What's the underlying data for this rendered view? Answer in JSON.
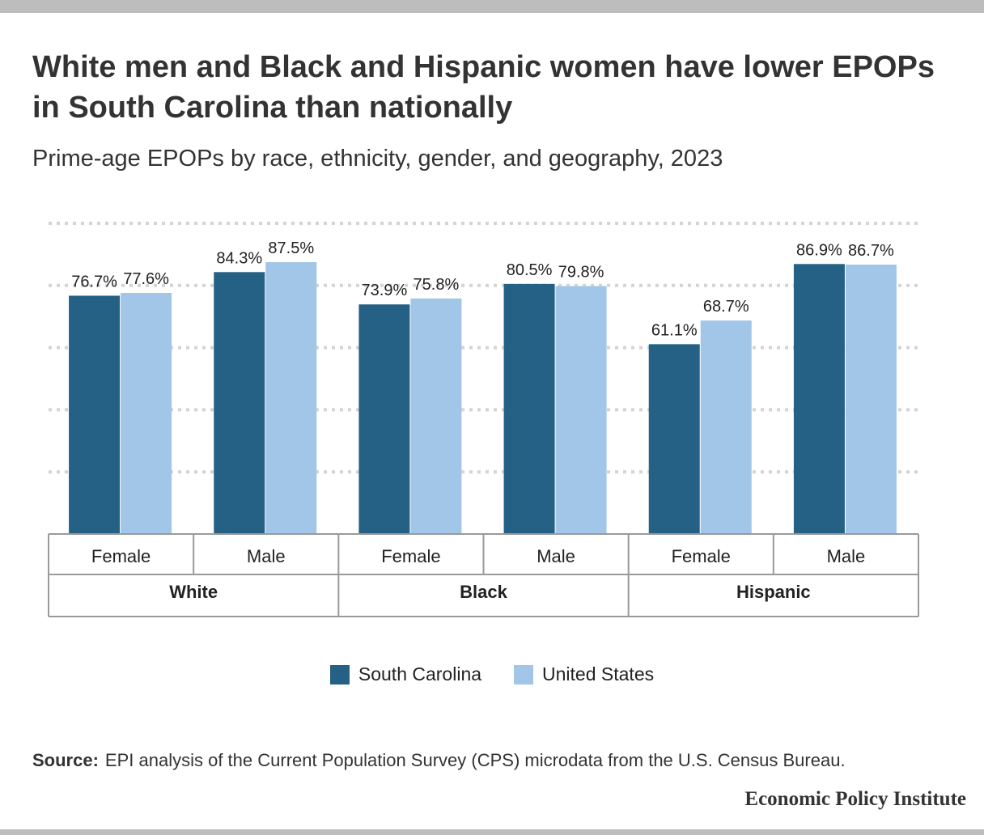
{
  "title": "White men and Black and Hispanic women have lower EPOPs in South Carolina than nationally",
  "subtitle": "Prime-age EPOPs by race, ethnicity, gender, and geography, 2023",
  "colors": {
    "south_carolina": "#256184",
    "united_states": "#a1c6e7",
    "grid": "#d4d4d4",
    "axis": "#9a9a9a"
  },
  "chart_data": {
    "type": "bar",
    "categories": [
      "Female",
      "Male",
      "Female",
      "Male",
      "Female",
      "Male"
    ],
    "groups": [
      {
        "label": "White",
        "categories": [
          "Female",
          "Male"
        ]
      },
      {
        "label": "Black",
        "categories": [
          "Female",
          "Male"
        ]
      },
      {
        "label": "Hispanic",
        "categories": [
          "Female",
          "Male"
        ]
      }
    ],
    "series": [
      {
        "name": "South Carolina",
        "values": [
          76.7,
          84.3,
          73.9,
          80.5,
          61.1,
          86.9
        ],
        "labels": [
          "76.7%",
          "84.3%",
          "73.9%",
          "80.5%",
          "61.1%",
          "86.9%"
        ]
      },
      {
        "name": "United States",
        "values": [
          77.6,
          87.5,
          75.8,
          79.8,
          68.7,
          86.7
        ],
        "labels": [
          "77.6%",
          "87.5%",
          "75.8%",
          "79.8%",
          "68.7%",
          "86.7%"
        ]
      }
    ],
    "ylim": [
      0,
      100
    ],
    "gridlines": [
      20,
      40,
      60,
      80,
      100
    ],
    "grid": true,
    "legend_position": "bottom"
  },
  "legend": {
    "items": [
      "South Carolina",
      "United States"
    ]
  },
  "source": {
    "label": "Source:",
    "text": "EPI analysis of the Current Population Survey (CPS) microdata from the U.S. Census Bureau."
  },
  "brand": "Economic Policy Institute"
}
